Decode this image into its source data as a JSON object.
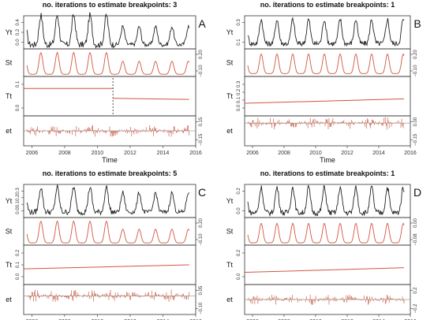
{
  "figure": {
    "x_axis_label": "Time",
    "x_ticks": [
      "2006",
      "2008",
      "2010",
      "2012",
      "2014",
      "2016"
    ],
    "colors": {
      "observed": "#222222",
      "fitted": "#d2553f",
      "residual": "#c8604a",
      "breakpoint": "#222222",
      "axis": "#333333"
    }
  },
  "chart_data": [
    {
      "panel": "A",
      "type": "line",
      "title": "no. iterations to estimate breakpoints: 3",
      "xlim": [
        2005.5,
        2016.0
      ],
      "breakpoint": 2010.95,
      "rows": [
        {
          "label": "Yt",
          "ticks": [
            "0.0",
            "0.2",
            "0.4"
          ],
          "tick_side": "left",
          "ylim": [
            -0.02,
            0.45
          ],
          "kind": "observed",
          "amp": [
            0.42,
            0.42,
            0.42,
            0.42,
            0.42,
            0.26,
            0.26,
            0.26,
            0.26,
            0.26
          ],
          "base": 0.04
        },
        {
          "label": "St",
          "ticks": [
            "−0.10",
            "0.20"
          ],
          "tick_side": "right",
          "ylim": [
            -0.14,
            0.24
          ],
          "kind": "seasonal",
          "amp": [
            0.3,
            0.3,
            0.3,
            0.3,
            0.3,
            0.18,
            0.18,
            0.18,
            0.18,
            0.18
          ],
          "base": -0.11
        },
        {
          "label": "Tt",
          "ticks": [
            "0.0",
            "0.1"
          ],
          "tick_side": "left",
          "ylim": [
            -0.02,
            0.16
          ],
          "kind": "trend",
          "segments": [
            [
              2005.5,
              0.105,
              2010.95,
              0.105
            ],
            [
              2010.95,
              0.06,
              2015.6,
              0.055
            ]
          ]
        },
        {
          "label": "et",
          "ticks": [
            "−0.15",
            "0.15"
          ],
          "tick_side": "right",
          "ylim": [
            -0.17,
            0.17
          ],
          "kind": "residual",
          "scale": 0.09
        }
      ]
    },
    {
      "panel": "B",
      "type": "line",
      "title": "no. iterations to estimate breakpoints: 1",
      "xlim": [
        2005.5,
        2016.0
      ],
      "breakpoint": null,
      "rows": [
        {
          "label": "Yt",
          "ticks": [
            "0.1",
            "0.3"
          ],
          "tick_side": "left",
          "ylim": [
            0.0,
            0.38
          ],
          "kind": "observed",
          "amp": [
            0.28,
            0.28,
            0.28,
            0.28,
            0.28,
            0.28,
            0.28,
            0.28,
            0.28,
            0.28
          ],
          "base": 0.06
        },
        {
          "label": "St",
          "ticks": [
            "−0.10",
            "0.20"
          ],
          "tick_side": "right",
          "ylim": [
            -0.14,
            0.24
          ],
          "kind": "seasonal",
          "amp": [
            0.27,
            0.27,
            0.27,
            0.27,
            0.27,
            0.27,
            0.27,
            0.27,
            0.27,
            0.27
          ],
          "base": -0.1
        },
        {
          "label": "Tt",
          "ticks": [
            "0.0",
            "0.1",
            "0.2",
            "0.3"
          ],
          "tick_side": "left",
          "ylim": [
            -0.04,
            0.32
          ],
          "kind": "trend",
          "segments": [
            [
              2005.5,
              0.075,
              2015.6,
              0.115
            ]
          ]
        },
        {
          "label": "et",
          "ticks": [
            "−0.15",
            "0.00"
          ],
          "tick_side": "right",
          "ylim": [
            -0.19,
            0.06
          ],
          "kind": "residual",
          "scale": 0.07
        }
      ]
    },
    {
      "panel": "C",
      "type": "line",
      "title": "no. iterations to estimate breakpoints: 5",
      "xlim": [
        2005.5,
        2016.0
      ],
      "breakpoint": null,
      "rows": [
        {
          "label": "Yt",
          "ticks": [
            "0.0",
            "0.1",
            "0.2",
            "0.3"
          ],
          "tick_side": "left",
          "ylim": [
            -0.03,
            0.34
          ],
          "kind": "observed",
          "amp": [
            0.28,
            0.28,
            0.28,
            0.28,
            0.28,
            0.22,
            0.22,
            0.22,
            0.22,
            0.22
          ],
          "base": 0.03
        },
        {
          "label": "St",
          "ticks": [
            "−0.10",
            "0.20"
          ],
          "tick_side": "right",
          "ylim": [
            -0.14,
            0.24
          ],
          "kind": "seasonal",
          "amp": [
            0.3,
            0.3,
            0.3,
            0.3,
            0.3,
            0.19,
            0.19,
            0.19,
            0.19,
            0.19
          ],
          "base": -0.11
        },
        {
          "label": "Tt",
          "ticks": [
            "0.0",
            "0.1",
            "0.2"
          ],
          "tick_side": "left",
          "ylim": [
            -0.03,
            0.26
          ],
          "kind": "trend",
          "segments": [
            [
              2005.5,
              0.085,
              2015.6,
              0.115
            ]
          ]
        },
        {
          "label": "et",
          "ticks": [
            "−0.10",
            "0.05"
          ],
          "tick_side": "right",
          "ylim": [
            -0.13,
            0.08
          ],
          "kind": "residual",
          "scale": 0.06
        }
      ]
    },
    {
      "panel": "D",
      "type": "line",
      "title": "no. iterations to estimate breakpoints: 1",
      "xlim": [
        2005.5,
        2016.0
      ],
      "breakpoint": null,
      "rows": [
        {
          "label": "Yt",
          "ticks": [
            "0.0",
            "0.2"
          ],
          "tick_side": "left",
          "ylim": [
            -0.03,
            0.32
          ],
          "kind": "observed",
          "amp": [
            0.27,
            0.27,
            0.27,
            0.27,
            0.27,
            0.27,
            0.27,
            0.27,
            0.27,
            0.27
          ],
          "base": 0.02
        },
        {
          "label": "St",
          "ticks": [
            "−0.08",
            "0.00"
          ],
          "tick_side": "right",
          "ylim": [
            -0.1,
            0.02
          ],
          "kind": "seasonal",
          "amp": [
            0.085,
            0.085,
            0.085,
            0.085,
            0.085,
            0.085,
            0.085,
            0.085,
            0.085,
            0.085
          ],
          "base": -0.09
        },
        {
          "label": "Tt",
          "ticks": [
            "0.0",
            "0.2"
          ],
          "tick_side": "left",
          "ylim": [
            -0.04,
            0.3
          ],
          "kind": "trend",
          "segments": [
            [
              2005.5,
              0.065,
              2015.6,
              0.105
            ]
          ]
        },
        {
          "label": "et",
          "ticks": [
            "−0.2",
            "0.2"
          ],
          "tick_side": "right",
          "ylim": [
            -0.26,
            0.26
          ],
          "kind": "residual",
          "scale": 0.12
        }
      ]
    }
  ]
}
